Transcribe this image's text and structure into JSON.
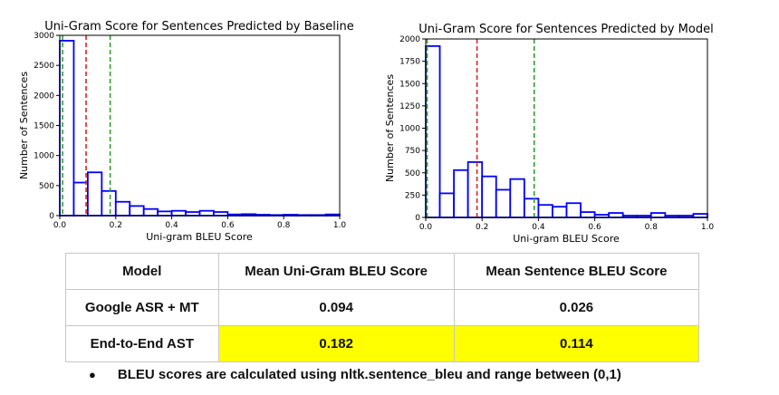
{
  "chart_data": [
    {
      "type": "bar",
      "title": "Uni-Gram Score for Sentences Predicted by Baseline",
      "xlabel": "Uni-gram BLEU Score",
      "ylabel": "Number of Sentences",
      "xlim": [
        0,
        1
      ],
      "ylim": [
        0,
        3000
      ],
      "xticks": [
        0.0,
        0.2,
        0.4,
        0.6,
        0.8,
        1.0
      ],
      "xtick_labels": [
        "0.0",
        "0.2",
        "0.4",
        "0.6",
        "0.8",
        "1.0"
      ],
      "yticks": [
        0,
        500,
        1000,
        1500,
        2000,
        2500,
        3000
      ],
      "ytick_labels": [
        "0",
        "500",
        "1000",
        "1500",
        "2000",
        "2500",
        "3000"
      ],
      "bin_edges": [
        0.0,
        0.05,
        0.1,
        0.15,
        0.2,
        0.25,
        0.3,
        0.35,
        0.4,
        0.45,
        0.5,
        0.55,
        0.6,
        0.65,
        0.7,
        0.75,
        0.8,
        0.85,
        0.9,
        0.95,
        1.0
      ],
      "values": [
        2910,
        550,
        720,
        410,
        230,
        160,
        110,
        70,
        80,
        60,
        80,
        60,
        20,
        25,
        15,
        10,
        15,
        10,
        10,
        20
      ],
      "bar_color": "#0000ff",
      "vlines": [
        {
          "x": 0.01,
          "color": "#2ca02c"
        },
        {
          "x": 0.094,
          "color": "#d62728"
        },
        {
          "x": 0.18,
          "color": "#2ca02c"
        }
      ]
    },
    {
      "type": "bar",
      "title": "Uni-Gram Score for Sentences Predicted by Model",
      "xlabel": "Uni-gram BLEU Score",
      "ylabel": "Number of Sentences",
      "xlim": [
        0,
        1
      ],
      "ylim": [
        0,
        2000
      ],
      "xticks": [
        0.0,
        0.2,
        0.4,
        0.6,
        0.8,
        1.0
      ],
      "xtick_labels": [
        "0.0",
        "0.2",
        "0.4",
        "0.6",
        "0.8",
        "1.0"
      ],
      "yticks": [
        0,
        250,
        500,
        750,
        1000,
        1250,
        1500,
        1750,
        2000
      ],
      "ytick_labels": [
        "0",
        "250",
        "500",
        "750",
        "1000",
        "1250",
        "1500",
        "1750",
        "2000"
      ],
      "bin_edges": [
        0.0,
        0.05,
        0.1,
        0.15,
        0.2,
        0.25,
        0.3,
        0.35,
        0.4,
        0.45,
        0.5,
        0.55,
        0.6,
        0.65,
        0.7,
        0.75,
        0.8,
        0.85,
        0.9,
        0.95,
        1.0
      ],
      "values": [
        1920,
        270,
        530,
        620,
        460,
        310,
        430,
        210,
        140,
        120,
        160,
        60,
        30,
        50,
        20,
        20,
        50,
        20,
        20,
        40
      ],
      "bar_color": "#0000ff",
      "vlines": [
        {
          "x": 0.005,
          "color": "#2ca02c"
        },
        {
          "x": 0.182,
          "color": "#d62728"
        },
        {
          "x": 0.385,
          "color": "#2ca02c"
        }
      ]
    }
  ],
  "table": {
    "headers": [
      "Model",
      "Mean Uni-Gram BLEU Score",
      "Mean Sentence BLEU Score"
    ],
    "rows": [
      {
        "model": "Google ASR + MT",
        "unigram": "0.094",
        "sentence": "0.026"
      },
      {
        "model": "End-to-End AST",
        "unigram": "0.182",
        "sentence": "0.114"
      }
    ],
    "highlight_color": "#ffff00"
  },
  "note": {
    "bullet": "●",
    "text": "BLEU scores are calculated using nltk.sentence_bleu and range between (0,1)"
  }
}
